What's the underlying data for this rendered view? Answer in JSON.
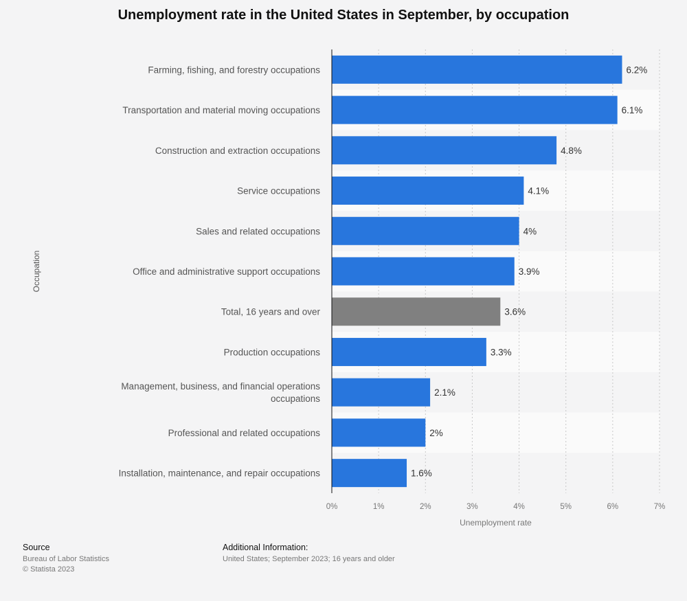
{
  "chart_data": {
    "type": "bar",
    "orientation": "horizontal",
    "title": "Unemployment rate in the United States in September, by occupation",
    "xlabel": "Unemployment rate",
    "ylabel": "Occupation",
    "xlim": [
      0,
      7
    ],
    "x_ticks": [
      "0%",
      "1%",
      "2%",
      "3%",
      "4%",
      "5%",
      "6%",
      "7%"
    ],
    "grid": true,
    "categories": [
      "Farming, fishing, and forestry occupations",
      "Transportation and material moving occupations",
      "Construction and extraction occupations",
      "Service occupations",
      "Sales and related occupations",
      "Office and administrative support occupations",
      "Total, 16 years and over",
      "Production occupations",
      "Management, business, and financial operations occupations",
      "Professional and related occupations",
      "Installation, maintenance, and repair occupations"
    ],
    "values": [
      6.2,
      6.1,
      4.8,
      4.1,
      4.0,
      3.9,
      3.6,
      3.3,
      2.1,
      2.0,
      1.6
    ],
    "value_labels": [
      "6.2%",
      "6.1%",
      "4.8%",
      "4.1%",
      "4%",
      "3.9%",
      "3.6%",
      "3.3%",
      "2.1%",
      "2%",
      "1.6%"
    ],
    "highlight_category": "Total, 16 years and over",
    "colors": {
      "bar": "#2876dd",
      "highlight": "#808080"
    }
  },
  "footer": {
    "source_label": "Source",
    "source_lines": [
      "Bureau of Labor Statistics",
      "© Statista 2023"
    ],
    "info_label": "Additional Information:",
    "info_text": "United States; September 2023; 16 years and older"
  }
}
